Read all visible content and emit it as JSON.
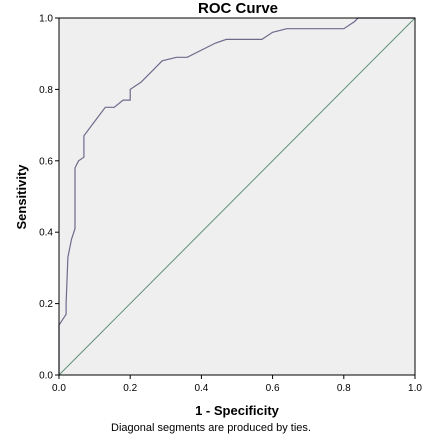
{
  "chart_data": {
    "type": "line",
    "title": "ROC Curve",
    "xlabel": "1 - Specificity",
    "ylabel": "Sensitivity",
    "footnote": "Diagonal segments are produced by ties.",
    "xlim": [
      0,
      1
    ],
    "ylim": [
      0,
      1
    ],
    "x_ticks": [
      "0.0",
      "0.2",
      "0.4",
      "0.6",
      "0.8",
      "1.0"
    ],
    "y_ticks": [
      "0.0",
      "0.2",
      "0.4",
      "0.6",
      "0.8",
      "1.0"
    ],
    "grid": false,
    "colors": {
      "plot_bg": "#efefef",
      "roc_line": "#6e6a8c",
      "reference_line": "#5e8f77"
    },
    "series": [
      {
        "values": [
          [
            0.0,
            0.0
          ],
          [
            0.0,
            0.14
          ],
          [
            0.02,
            0.17
          ],
          [
            0.02,
            0.2
          ],
          [
            0.025,
            0.33
          ],
          [
            0.035,
            0.38
          ],
          [
            0.045,
            0.41
          ],
          [
            0.045,
            0.58
          ],
          [
            0.055,
            0.6
          ],
          [
            0.07,
            0.61
          ],
          [
            0.07,
            0.67
          ],
          [
            0.1,
            0.71
          ],
          [
            0.13,
            0.75
          ],
          [
            0.155,
            0.75
          ],
          [
            0.18,
            0.77
          ],
          [
            0.2,
            0.77
          ],
          [
            0.2,
            0.8
          ],
          [
            0.23,
            0.82
          ],
          [
            0.26,
            0.85
          ],
          [
            0.29,
            0.88
          ],
          [
            0.33,
            0.89
          ],
          [
            0.36,
            0.89
          ],
          [
            0.4,
            0.91
          ],
          [
            0.44,
            0.93
          ],
          [
            0.47,
            0.94
          ],
          [
            0.57,
            0.94
          ],
          [
            0.6,
            0.96
          ],
          [
            0.64,
            0.97
          ],
          [
            0.8,
            0.97
          ],
          [
            0.83,
            0.99
          ],
          [
            0.84,
            1.0
          ],
          [
            1.0,
            1.0
          ]
        ]
      },
      {
        "values": [
          [
            0.0,
            0.0
          ],
          [
            1.0,
            1.0
          ]
        ]
      }
    ]
  }
}
